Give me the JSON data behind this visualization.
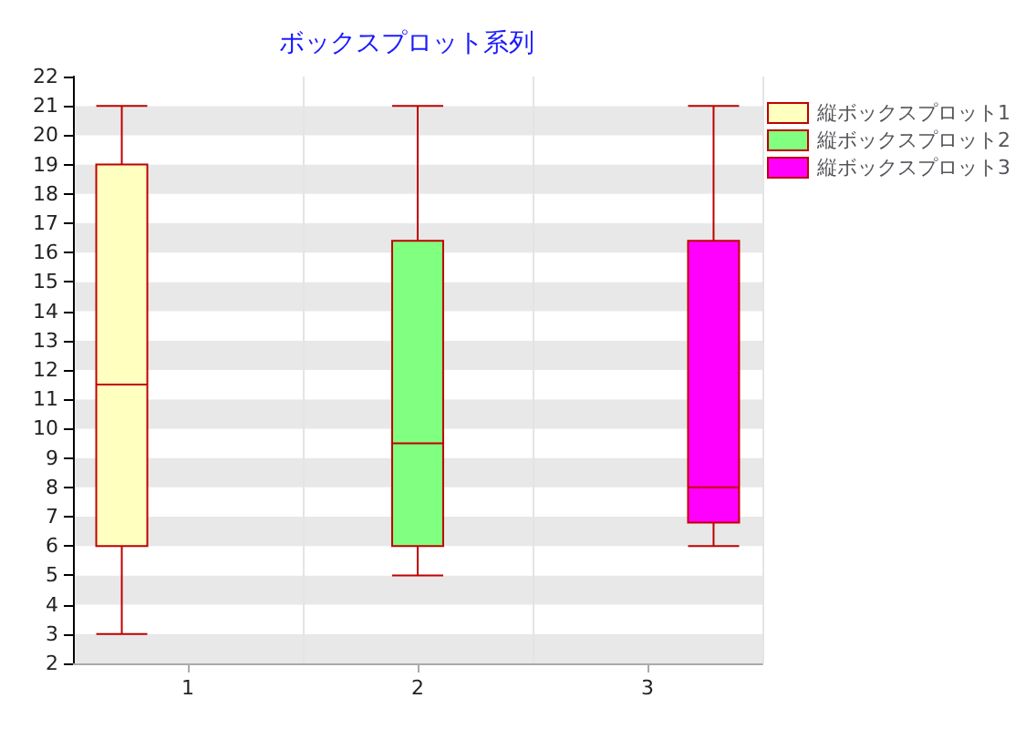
{
  "chart_data": {
    "type": "box",
    "title": "ボックスプロット系列",
    "categories": [
      "1",
      "2",
      "3"
    ],
    "series": [
      {
        "name": "縦ボックスプロット1",
        "color": "#ffffc0",
        "boxes": [
          {
            "low": 3,
            "q1": 6,
            "median": 11.5,
            "q3": 19,
            "high": 21
          },
          null,
          null
        ]
      },
      {
        "name": "縦ボックスプロット2",
        "color": "#80ff80",
        "boxes": [
          null,
          {
            "low": 5,
            "q1": 6,
            "median": 9.5,
            "q3": 16.4,
            "high": 21
          },
          null
        ]
      },
      {
        "name": "縦ボックスプロット3",
        "color": "#ff00ff",
        "boxes": [
          null,
          null,
          {
            "low": 6,
            "q1": 6.8,
            "median": 8,
            "q3": 16.4,
            "high": 21
          }
        ]
      }
    ],
    "ylim": [
      2,
      22
    ],
    "yticks": [
      2,
      3,
      4,
      5,
      6,
      7,
      8,
      9,
      10,
      11,
      12,
      13,
      14,
      15,
      16,
      17,
      18,
      19,
      20,
      21,
      22
    ],
    "grid": true,
    "legend": "top right"
  }
}
